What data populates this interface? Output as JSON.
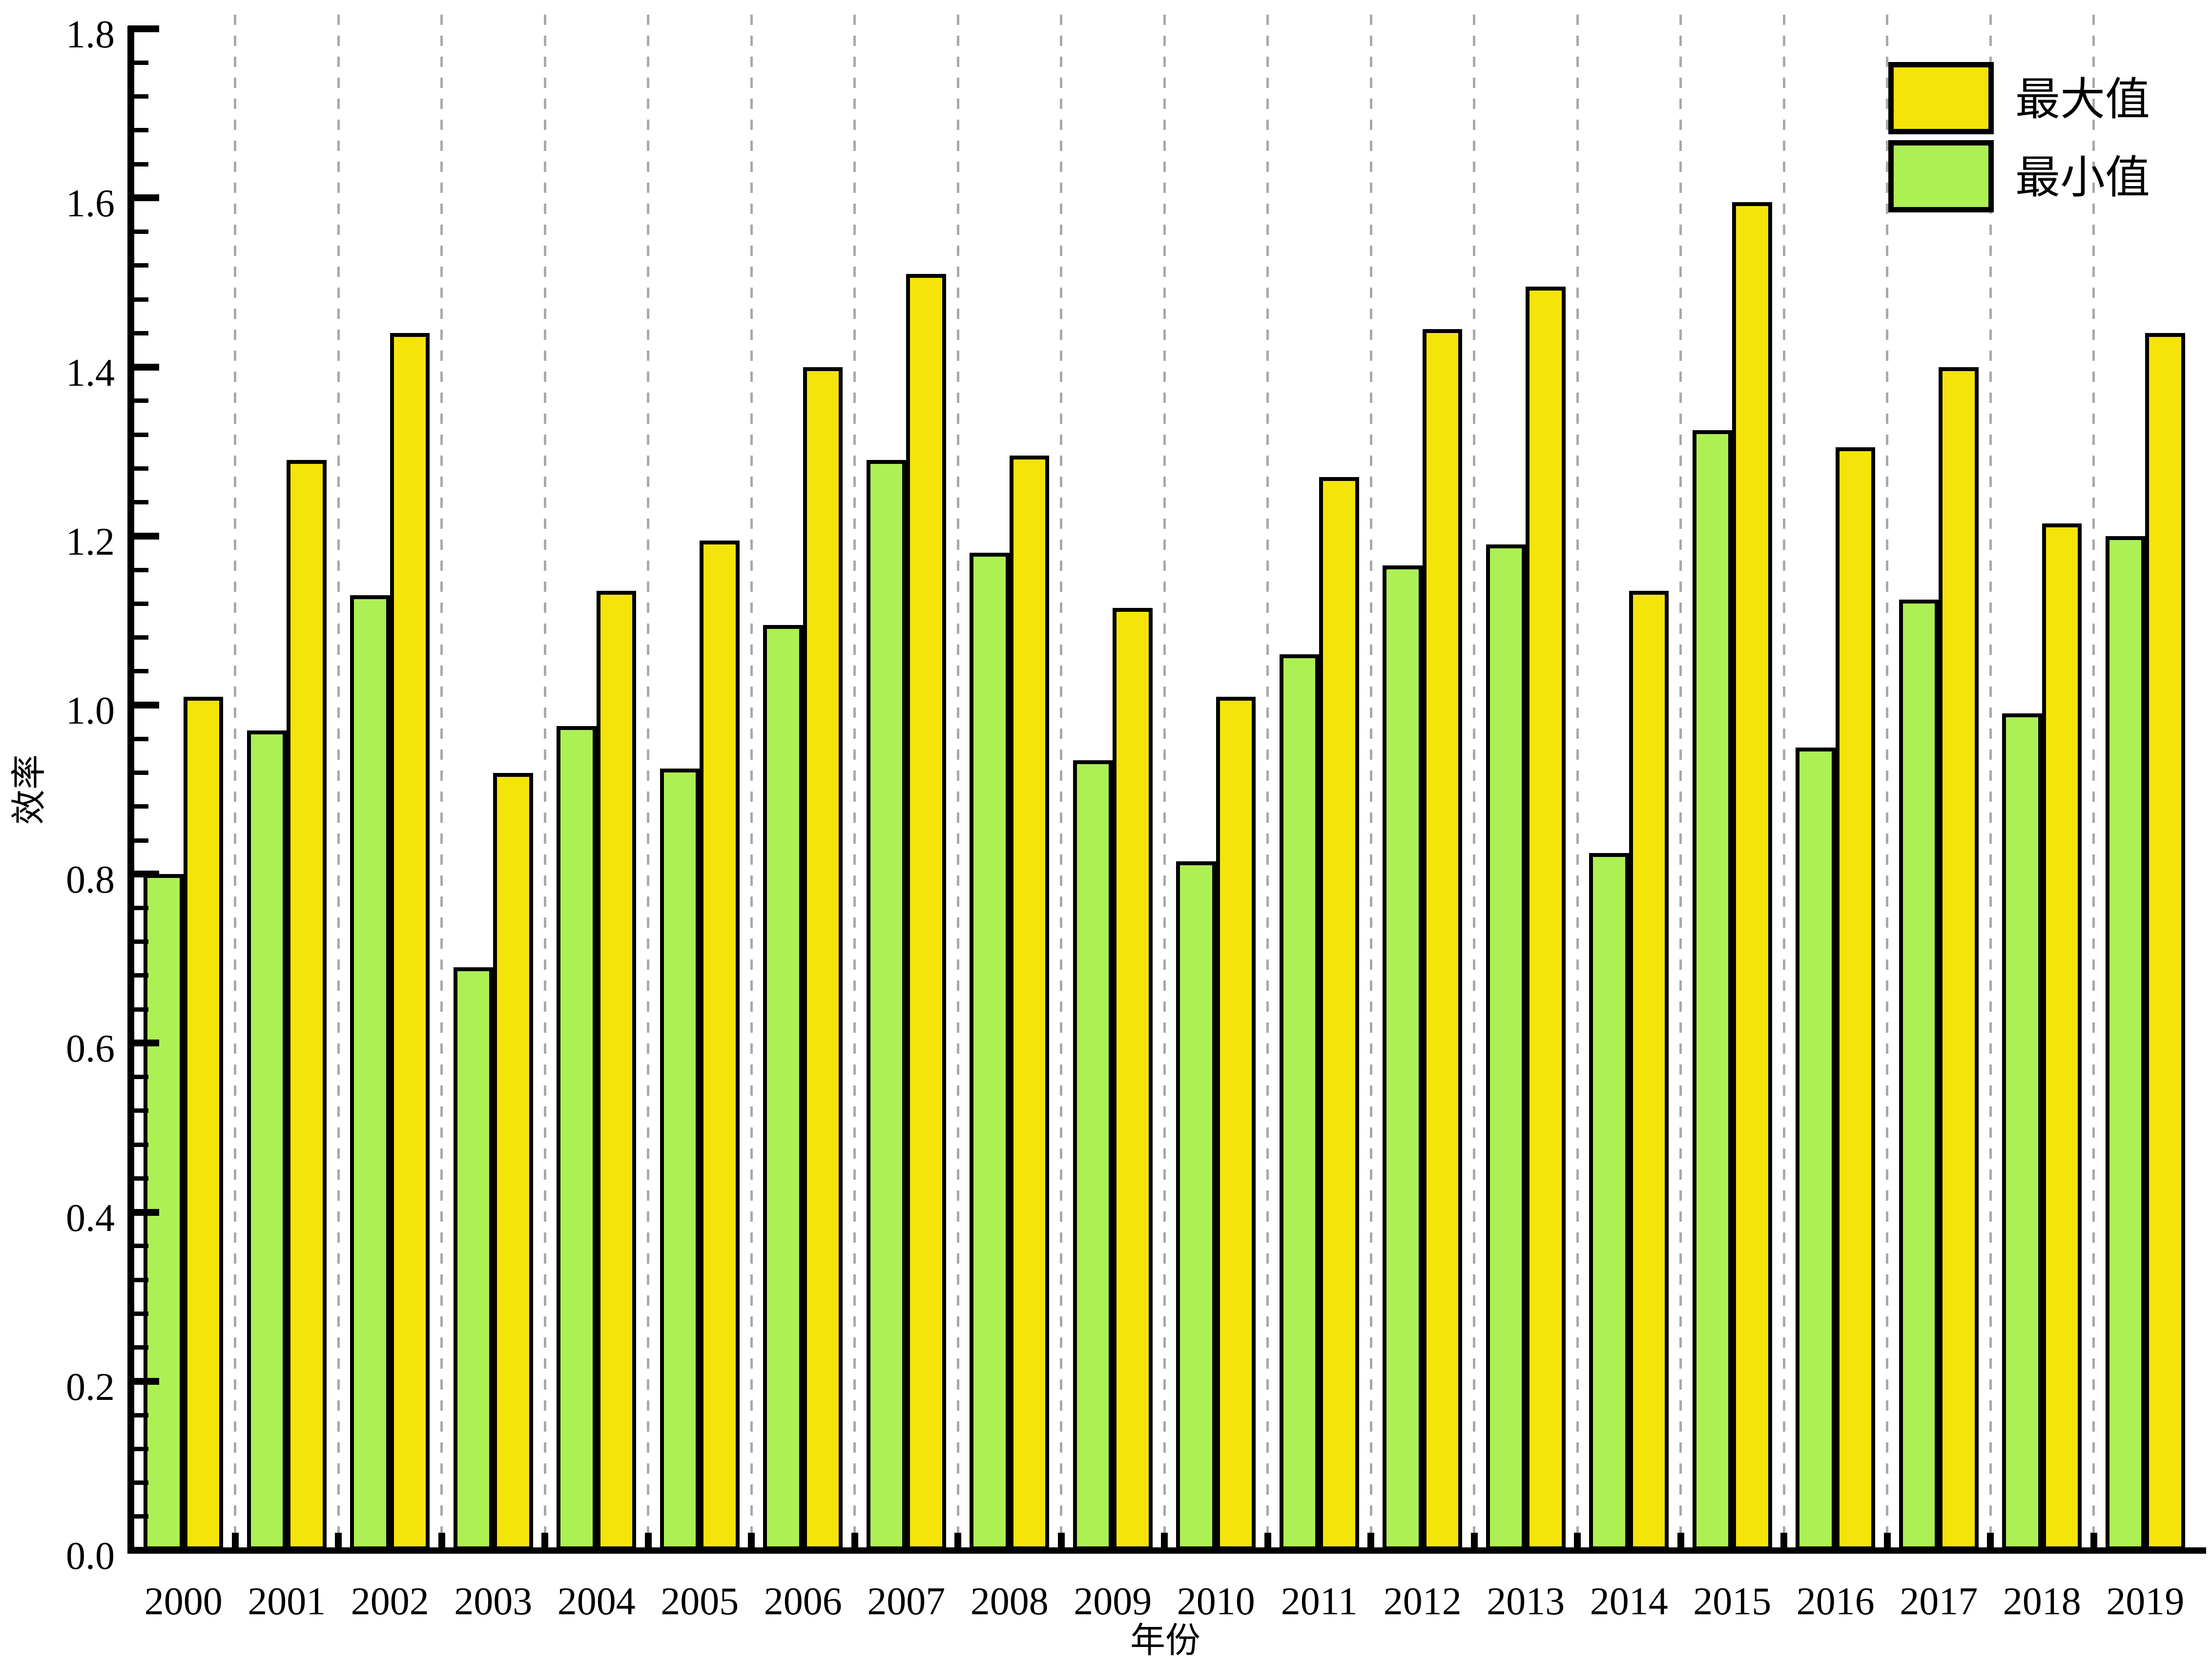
{
  "chart_data": {
    "type": "bar",
    "categories": [
      "2000",
      "2001",
      "2002",
      "2003",
      "2004",
      "2005",
      "2006",
      "2007",
      "2008",
      "2009",
      "2010",
      "2011",
      "2012",
      "2013",
      "2014",
      "2015",
      "2016",
      "2017",
      "2018",
      "2019"
    ],
    "series": [
      {
        "name": "最大值",
        "color": "#f5e409",
        "values": [
          1.01,
          1.29,
          1.44,
          0.92,
          1.135,
          1.195,
          1.4,
          1.51,
          1.295,
          1.115,
          1.01,
          1.27,
          1.445,
          1.495,
          1.135,
          1.595,
          1.305,
          1.4,
          1.215,
          1.44
        ]
      },
      {
        "name": "最小值",
        "color": "#adf054",
        "values": [
          0.8,
          0.97,
          1.13,
          0.69,
          0.975,
          0.925,
          1.095,
          1.29,
          1.18,
          0.935,
          0.815,
          1.06,
          1.165,
          1.19,
          0.825,
          1.325,
          0.95,
          1.125,
          0.99,
          1.2
        ]
      }
    ],
    "xlabel": "年份",
    "ylabel": "效率",
    "ylim": [
      0.0,
      1.8
    ],
    "ytick_step": 0.2,
    "ytick_labels": [
      "0.0",
      "0.2",
      "0.4",
      "0.6",
      "0.8",
      "1.0",
      "1.2",
      "1.4",
      "1.6",
      "1.8"
    ],
    "yminor_step": 0.04,
    "grid": "vertical-dashed",
    "legend_position": "top-right",
    "bar_order_in_group": [
      "最小值",
      "最大值"
    ]
  },
  "colors": {
    "max_fill": "#f5e409",
    "min_fill": "#adf054",
    "outline": "#000000",
    "gridline": "#a8a8a8",
    "background": "#ffffff"
  }
}
